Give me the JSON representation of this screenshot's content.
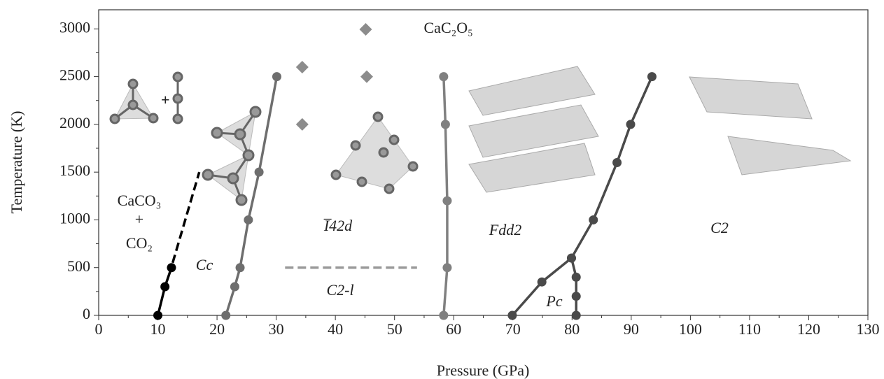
{
  "chart_data": {
    "type": "line",
    "x_label": "Pressure (GPa)",
    "y_label": "Temperature (K)",
    "xlim": [
      0,
      130
    ],
    "ylim": [
      0,
      3200
    ],
    "xticks": [
      0,
      10,
      20,
      30,
      40,
      50,
      60,
      70,
      80,
      90,
      100,
      110,
      120,
      130
    ],
    "yticks": [
      0,
      500,
      1000,
      1500,
      2000,
      2500,
      3000
    ],
    "legend": "top",
    "series": [
      {
        "color": "#000000",
        "x": [
          10,
          11.2,
          12.3
        ],
        "values": [
          0,
          300,
          500
        ],
        "markers": true,
        "dashed": false
      },
      {
        "color": "#000000",
        "x": [
          12.5,
          17
        ],
        "values": [
          550,
          1500
        ],
        "markers": false,
        "dashed": true
      },
      {
        "color": "#6e6e6e",
        "x": [
          21.5,
          23,
          23.9,
          25.3,
          27.1,
          30.1
        ],
        "values": [
          0,
          300,
          500,
          1000,
          1500,
          2500
        ],
        "markers": true,
        "dashed": false
      },
      {
        "color": "#808080",
        "x": [
          58.3,
          58.9,
          58.9,
          58.6,
          58.3
        ],
        "values": [
          0,
          500,
          1200,
          2000,
          2500
        ],
        "markers": true,
        "dashed": false
      },
      {
        "color": "#4a4a4a",
        "x": [
          69.9,
          74.9,
          79.9,
          83.6,
          87.6,
          89.9,
          93.5
        ],
        "values": [
          0,
          350,
          600,
          1000,
          1600,
          2000,
          2500
        ],
        "markers": true,
        "dashed": false
      },
      {
        "color": "#4a4a4a",
        "x": [
          79.9,
          80.7,
          80.7,
          80.7
        ],
        "values": [
          600,
          400,
          200,
          0
        ],
        "markers": true,
        "dashed": false
      },
      {
        "color": "#999999",
        "x": [
          31.5,
          53.8
        ],
        "values": [
          500,
          500
        ],
        "markers": false,
        "dashed": true
      },
      {
        "name": "CaC₂O₅",
        "color": "#8c8c8c",
        "x": [
          34.4,
          34.4,
          45.3
        ],
        "values": [
          2600,
          2000,
          2500
        ],
        "markers": true,
        "scatter": true
      }
    ],
    "annotations": [
      "CaCO₃",
      "+",
      "CO₂",
      "Cc",
      "I̅42d",
      "Fdd2",
      "C2",
      "C2-l",
      "Pc"
    ]
  }
}
